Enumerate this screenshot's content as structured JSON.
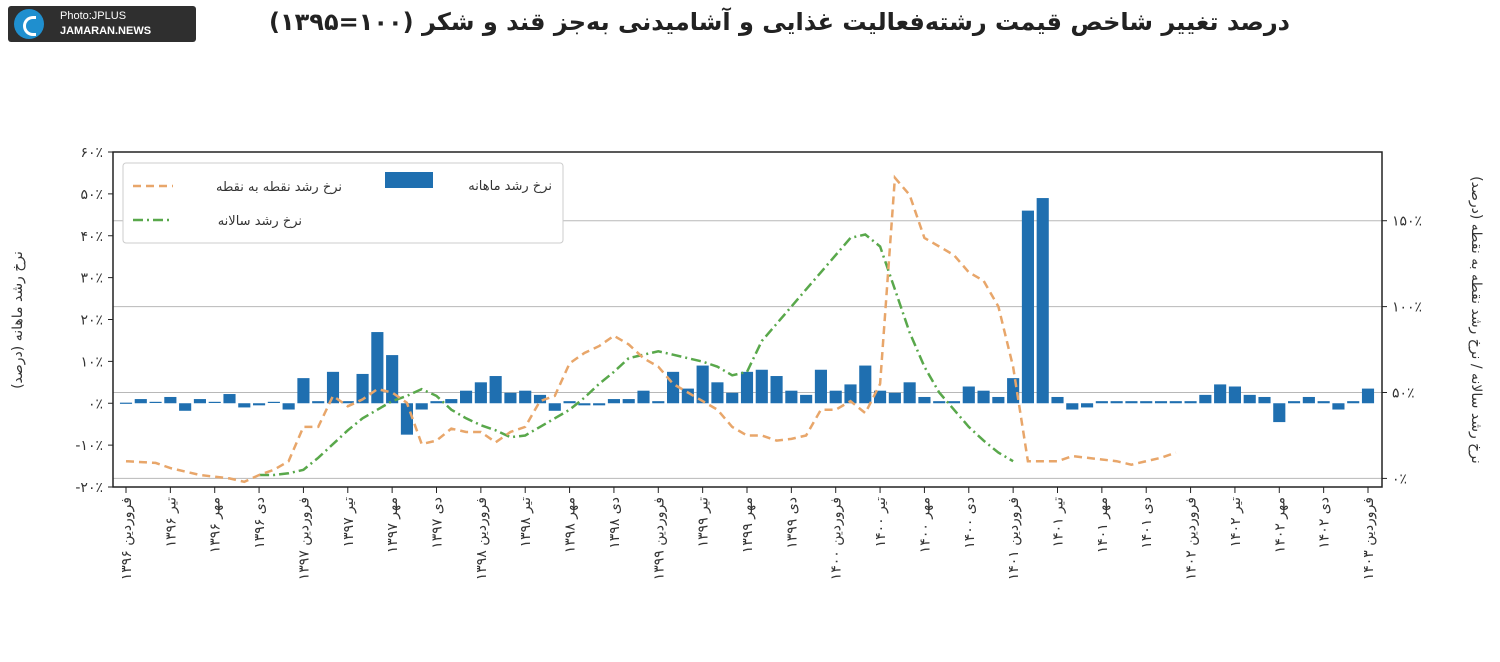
{
  "watermark": {
    "line1": "Photo:JPLUS",
    "line2": "JAMARAN.NEWS"
  },
  "chart_data": {
    "type": "bar+line",
    "title": "درصد تغییر شاخص قیمت رشته‌فعالیت غذایی و آشامیدنی به‌جز قند و شکر (۱۰۰=۱۳۹۵)",
    "ylabel_left": "نرخ رشد ماهانه (درصد)",
    "ylabel_right": "نرخ رشد سالانه / نرخ رشد نقطه به نقطه (درصد)",
    "left_axis": {
      "ylim": [
        -20,
        60
      ],
      "ticks": [
        -20,
        -10,
        0,
        10,
        20,
        30,
        40,
        50,
        60
      ],
      "tick_labels": [
        "-۲۰٪",
        "-۱۰٪",
        "۰٪",
        "۱۰٪",
        "۲۰٪",
        "۳۰٪",
        "۴۰٪",
        "۵۰٪",
        "۶۰٪"
      ]
    },
    "right_axis": {
      "ylim": [
        -5,
        190
      ],
      "ticks": [
        0,
        50,
        100,
        150
      ],
      "tick_labels": [
        "۰٪",
        "۵۰٪",
        "۱۰۰٪",
        "۱۵۰٪"
      ]
    },
    "grid": "horizontal at right-axis ticks",
    "legend": {
      "placement": "top-left",
      "entries": [
        {
          "key": "yoy",
          "label": "نرخ رشد نقطه به نقطه"
        },
        {
          "key": "mom",
          "label": "نرخ رشد ماهانه"
        },
        {
          "key": "annual",
          "label": "نرخ رشد سالانه"
        }
      ]
    },
    "x_tick_labels": [
      "فروردین ۱۳۹۶",
      "تیر ۱۳۹۶",
      "مهر ۱۳۹۶",
      "دی ۱۳۹۶",
      "فروردین ۱۳۹۷",
      "تیر ۱۳۹۷",
      "مهر ۱۳۹۷",
      "دی ۱۳۹۷",
      "فروردین ۱۳۹۸",
      "تیر ۱۳۹۸",
      "مهر ۱۳۹۸",
      "دی ۱۳۹۸",
      "فروردین ۱۳۹۹",
      "تیر ۱۳۹۹",
      "مهر ۱۳۹۹",
      "دی ۱۳۹۹",
      "فروردین ۱۴۰۰",
      "تیر ۱۴۰۰",
      "مهر ۱۴۰۰",
      "دی ۱۴۰۰",
      "فروردین ۱۴۰۱",
      "تیر ۱۴۰۱",
      "مهر ۱۴۰۱",
      "دی ۱۴۰۱",
      "فروردین ۱۴۰۲",
      "تیر ۱۴۰۲",
      "مهر ۱۴۰۲",
      "دی ۱۴۰۲",
      "فروردین ۱۴۰۳"
    ],
    "x_tick_every_months": 3,
    "months_count": 85,
    "series": [
      {
        "key": "mom",
        "name": "نرخ رشد ماهانه",
        "kind": "bar",
        "axis": "left",
        "color": "#1f6fb0",
        "values": [
          0,
          1,
          0.2,
          1.5,
          -1.8,
          1,
          0.2,
          2.2,
          -1,
          -0.5,
          0.2,
          -1.5,
          6,
          0.5,
          7.5,
          0.5,
          7,
          17,
          11.5,
          -7.5,
          -1.5,
          0.5,
          1,
          3,
          5,
          6.5,
          2.5,
          3,
          2,
          -1.8,
          0.5,
          -0.5,
          -0.5,
          1,
          1,
          3,
          0.5,
          7.5,
          3.5,
          9,
          5,
          2.5,
          7.5,
          8,
          6.5,
          3,
          2,
          8,
          3,
          4.5,
          9,
          3,
          2.5,
          5,
          1.5,
          0.5,
          0.5,
          4,
          3,
          1.5,
          6,
          46,
          49,
          1.5,
          -1.5,
          -1,
          0.5,
          0.5,
          0.5,
          0.5,
          0.5,
          0.5,
          0.5,
          2,
          4.5,
          4,
          2,
          1.5,
          -4.5,
          0.5,
          1.5,
          0.5,
          -1.5,
          0.5,
          3.5
        ]
      },
      {
        "key": "yoy",
        "name": "نرخ رشد نقطه به نقطه",
        "kind": "line",
        "style": "dashed",
        "axis": "right",
        "color": "#e8a66a",
        "points": [
          [
            0,
            10
          ],
          [
            4,
            9
          ],
          [
            6,
            6
          ],
          [
            10,
            2
          ],
          [
            14,
            0
          ],
          [
            16,
            -2
          ],
          [
            18,
            2
          ],
          [
            20,
            5
          ],
          [
            22,
            10
          ],
          [
            24,
            30
          ],
          [
            26,
            30
          ],
          [
            28,
            48
          ],
          [
            30,
            42
          ],
          [
            32,
            46
          ],
          [
            34,
            52
          ],
          [
            36,
            50
          ],
          [
            38,
            44
          ],
          [
            40,
            20
          ],
          [
            42,
            22
          ],
          [
            44,
            29
          ],
          [
            46,
            27
          ],
          [
            48,
            27
          ],
          [
            50,
            21
          ],
          [
            52,
            27
          ],
          [
            54,
            30
          ],
          [
            56,
            45
          ],
          [
            58,
            48
          ],
          [
            60,
            67
          ],
          [
            62,
            73
          ],
          [
            64,
            77
          ],
          [
            66,
            83
          ],
          [
            68,
            78
          ],
          [
            70,
            70
          ],
          [
            72,
            65
          ],
          [
            74,
            55
          ],
          [
            76,
            50
          ],
          [
            78,
            45
          ],
          [
            80,
            40
          ],
          [
            82,
            30
          ],
          [
            84,
            25
          ],
          [
            86,
            25
          ],
          [
            88,
            22
          ],
          [
            90,
            23
          ],
          [
            92,
            25
          ],
          [
            94,
            40
          ],
          [
            96,
            40
          ],
          [
            98,
            45
          ],
          [
            100,
            38
          ],
          [
            102,
            55
          ],
          [
            104,
            175
          ],
          [
            106,
            165
          ],
          [
            108,
            140
          ],
          [
            110,
            135
          ],
          [
            112,
            130
          ],
          [
            114,
            120
          ],
          [
            116,
            115
          ],
          [
            118,
            100
          ],
          [
            120,
            65
          ],
          [
            122,
            10
          ],
          [
            124,
            10
          ],
          [
            126,
            10
          ],
          [
            128,
            13
          ],
          [
            130,
            12
          ],
          [
            132,
            11
          ],
          [
            134,
            10
          ],
          [
            136,
            8
          ],
          [
            138,
            10
          ],
          [
            140,
            12
          ],
          [
            142,
            15
          ]
        ]
      },
      {
        "key": "annual",
        "name": "نرخ رشد سالانه",
        "kind": "line",
        "style": "dashdot",
        "axis": "right",
        "color": "#59a84b",
        "points": [
          [
            18,
            2
          ],
          [
            20,
            2
          ],
          [
            22,
            3
          ],
          [
            24,
            5
          ],
          [
            26,
            12
          ],
          [
            28,
            20
          ],
          [
            30,
            28
          ],
          [
            32,
            35
          ],
          [
            34,
            40
          ],
          [
            36,
            45
          ],
          [
            38,
            48
          ],
          [
            40,
            52
          ],
          [
            42,
            48
          ],
          [
            44,
            40
          ],
          [
            46,
            35
          ],
          [
            48,
            31
          ],
          [
            50,
            28
          ],
          [
            52,
            24
          ],
          [
            54,
            25
          ],
          [
            56,
            30
          ],
          [
            58,
            35
          ],
          [
            60,
            40
          ],
          [
            62,
            47
          ],
          [
            64,
            55
          ],
          [
            66,
            62
          ],
          [
            68,
            70
          ],
          [
            70,
            72
          ],
          [
            72,
            74
          ],
          [
            74,
            72
          ],
          [
            76,
            70
          ],
          [
            78,
            68
          ],
          [
            80,
            65
          ],
          [
            82,
            60
          ],
          [
            84,
            62
          ],
          [
            86,
            80
          ],
          [
            88,
            90
          ],
          [
            90,
            100
          ],
          [
            92,
            110
          ],
          [
            94,
            120
          ],
          [
            96,
            130
          ],
          [
            98,
            140
          ],
          [
            100,
            142
          ],
          [
            102,
            135
          ],
          [
            104,
            110
          ],
          [
            106,
            85
          ],
          [
            108,
            65
          ],
          [
            110,
            50
          ],
          [
            112,
            40
          ],
          [
            114,
            30
          ],
          [
            116,
            22
          ],
          [
            118,
            15
          ],
          [
            120,
            10
          ]
        ]
      }
    ]
  }
}
